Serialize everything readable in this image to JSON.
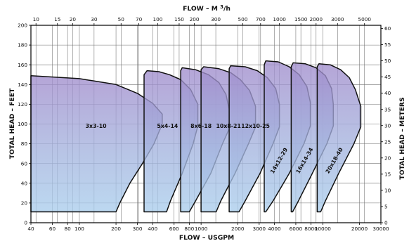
{
  "chart_data": {
    "type": "area",
    "top_axis": {
      "title": "FLOW – M",
      "title_sup": "3",
      "title_suffix": "/h",
      "scale": "log",
      "ticks": [
        "10",
        "15",
        "20",
        "30",
        "50",
        "70",
        "100",
        "150",
        "200",
        "300",
        "500",
        "700",
        "1000",
        "1500",
        "2000",
        "3000",
        "5000"
      ]
    },
    "bottom_axis": {
      "title": "FLOW – USGPM",
      "scale": "log",
      "xlim": [
        40,
        30000
      ],
      "ticks": [
        "40",
        "60",
        "80",
        "100",
        "200",
        "300",
        "400",
        "600",
        "800",
        "1000",
        "2000",
        "3000",
        "4000",
        "6000",
        "8000",
        "10000",
        "20000",
        "30000"
      ]
    },
    "left_axis": {
      "title": "TOTAL HEAD – FEET",
      "ylim": [
        0,
        200
      ],
      "ticks": [
        "0",
        "20",
        "40",
        "60",
        "80",
        "100",
        "120",
        "140",
        "160",
        "180",
        "200"
      ]
    },
    "right_axis": {
      "title": "TOTAL HEAD – METERS",
      "ylim": [
        0,
        60
      ],
      "ticks": [
        "0",
        "5",
        "10",
        "15",
        "20",
        "25",
        "30",
        "35",
        "40",
        "45",
        "50",
        "55",
        "60"
      ]
    },
    "grid": true,
    "series": [
      {
        "name": "3x3-10",
        "label_rotation": 0,
        "label_at": [
          137,
          96
        ],
        "outline": [
          [
            40,
            149
          ],
          [
            100,
            146
          ],
          [
            200,
            140
          ],
          [
            300,
            131
          ],
          [
            400,
            121
          ],
          [
            480,
            110
          ],
          [
            480,
            100
          ],
          [
            410,
            80
          ],
          [
            330,
            60
          ],
          [
            260,
            40
          ],
          [
            215,
            20
          ],
          [
            200,
            11
          ],
          [
            40,
            11
          ]
        ]
      },
      {
        "name": "5x4-14",
        "label_rotation": 0,
        "label_at": [
          530,
          96
        ],
        "outline": [
          [
            340,
            150
          ],
          [
            360,
            154
          ],
          [
            450,
            153
          ],
          [
            550,
            150
          ],
          [
            680,
            145
          ],
          [
            820,
            135
          ],
          [
            940,
            120
          ],
          [
            940,
            98
          ],
          [
            860,
            80
          ],
          [
            700,
            50
          ],
          [
            560,
            22
          ],
          [
            520,
            11
          ],
          [
            340,
            11
          ]
        ]
      },
      {
        "name": "8x6-18",
        "label_rotation": 0,
        "label_at": [
          1000,
          96
        ],
        "outline": [
          [
            680,
            154
          ],
          [
            700,
            157
          ],
          [
            900,
            155
          ],
          [
            1150,
            150
          ],
          [
            1400,
            142
          ],
          [
            1600,
            130
          ],
          [
            1700,
            115
          ],
          [
            1700,
            95
          ],
          [
            1500,
            80
          ],
          [
            1200,
            50
          ],
          [
            900,
            22
          ],
          [
            800,
            11
          ],
          [
            680,
            11
          ]
        ]
      },
      {
        "name": "10x8-21",
        "label_rotation": 0,
        "label_at": [
          1680,
          96
        ],
        "outline": [
          [
            1000,
            155
          ],
          [
            1050,
            158
          ],
          [
            1400,
            156
          ],
          [
            1750,
            152
          ],
          [
            2100,
            145
          ],
          [
            2500,
            134
          ],
          [
            2800,
            118
          ],
          [
            2800,
            97
          ],
          [
            2450,
            80
          ],
          [
            1900,
            50
          ],
          [
            1450,
            22
          ],
          [
            1330,
            11
          ],
          [
            1000,
            11
          ]
        ]
      },
      {
        "name": "12x10-25",
        "label_rotation": 0,
        "label_at": [
          2800,
          96
        ],
        "outline": [
          [
            1700,
            156
          ],
          [
            1750,
            159
          ],
          [
            2300,
            158
          ],
          [
            2900,
            154
          ],
          [
            3500,
            147
          ],
          [
            4100,
            136
          ],
          [
            4400,
            120
          ],
          [
            4400,
            97
          ],
          [
            3900,
            80
          ],
          [
            3050,
            50
          ],
          [
            2300,
            22
          ],
          [
            2050,
            11
          ],
          [
            1700,
            11
          ]
        ]
      },
      {
        "name": "14x12-29",
        "label_rotation": -60,
        "label_at": [
          4500,
          62
        ],
        "outline": [
          [
            3300,
            160
          ],
          [
            3400,
            164
          ],
          [
            4300,
            163
          ],
          [
            5300,
            158
          ],
          [
            6400,
            150
          ],
          [
            7400,
            138
          ],
          [
            7900,
            122
          ],
          [
            7900,
            98
          ],
          [
            7000,
            80
          ],
          [
            5300,
            50
          ],
          [
            3900,
            22
          ],
          [
            3400,
            11
          ],
          [
            3300,
            11
          ]
        ]
      },
      {
        "name": "16x14-34",
        "label_rotation": -60,
        "label_at": [
          7300,
          62
        ],
        "outline": [
          [
            5500,
            158
          ],
          [
            5700,
            162
          ],
          [
            7200,
            161
          ],
          [
            8800,
            157
          ],
          [
            10500,
            149
          ],
          [
            11800,
            136
          ],
          [
            12200,
            120
          ],
          [
            12200,
            98
          ],
          [
            10800,
            80
          ],
          [
            8200,
            50
          ],
          [
            6300,
            22
          ],
          [
            5650,
            11
          ],
          [
            5500,
            11
          ]
        ]
      },
      {
        "name": "20x18-40",
        "label_rotation": -60,
        "label_at": [
          12800,
          62
        ],
        "outline": [
          [
            9000,
            158
          ],
          [
            9300,
            161
          ],
          [
            11500,
            160
          ],
          [
            14000,
            155
          ],
          [
            16500,
            147
          ],
          [
            18500,
            135
          ],
          [
            20500,
            118
          ],
          [
            20500,
            97
          ],
          [
            18000,
            80
          ],
          [
            13500,
            50
          ],
          [
            10500,
            22
          ],
          [
            9600,
            11
          ],
          [
            9000,
            11
          ]
        ]
      }
    ]
  }
}
